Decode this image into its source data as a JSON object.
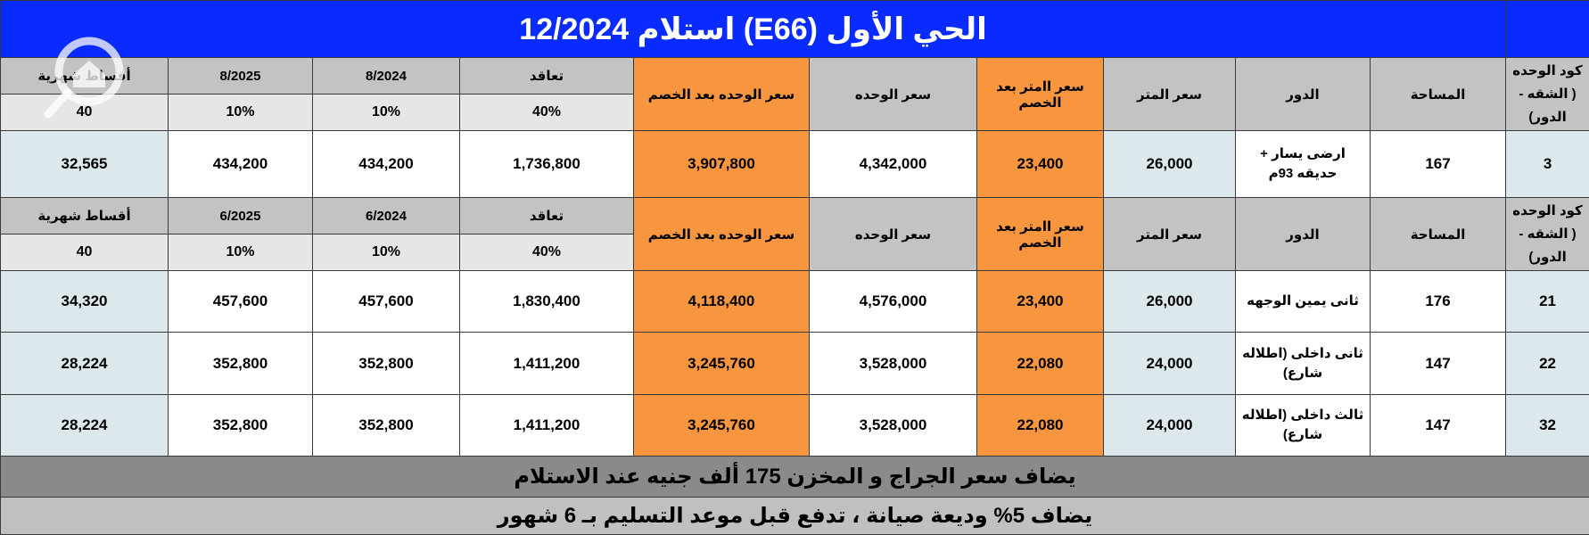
{
  "title": "الحي الأول (E66)  استلام 12/2024",
  "sections": [
    {
      "header_top": {
        "unit_code": "كود الوحده\n( الشقه - الدور)",
        "area": "المساحة",
        "floor": "الدور",
        "meter_price": "سعر المتر",
        "meter_price_discount": "سعر اامتر بعد الخصم",
        "unit_price": "سعر الوحده",
        "unit_price_discount": "سعر الوحده بعد الخصم",
        "contract": "تعاقد",
        "inst1": "8/2024",
        "inst2": "8/2025",
        "monthly": "أقساط شهرية"
      },
      "header_pct": {
        "contract": "40%",
        "inst1": "10%",
        "inst2": "10%",
        "monthly": "40"
      },
      "rows": [
        {
          "code": "3",
          "area": "167",
          "floor": "ارضى يسار + حديقه 93م",
          "meter_price": "26,000",
          "meter_price_discount": "23,400",
          "unit_price": "4,342,000",
          "unit_price_discount": "3,907,800",
          "contract": "1,736,800",
          "inst1": "434,200",
          "inst2": "434,200",
          "monthly": "32,565"
        }
      ]
    },
    {
      "header_top": {
        "unit_code": "كود الوحده\n( الشقه - الدور)",
        "area": "المساحة",
        "floor": "الدور",
        "meter_price": "سعر المتر",
        "meter_price_discount": "سعر اامتر بعد الخصم",
        "unit_price": "سعر الوحده",
        "unit_price_discount": "سعر الوحده بعد الخصم",
        "contract": "تعاقد",
        "inst1": "6/2024",
        "inst2": "6/2025",
        "monthly": "أقساط شهرية"
      },
      "header_pct": {
        "contract": "40%",
        "inst1": "10%",
        "inst2": "10%",
        "monthly": "40"
      },
      "rows": [
        {
          "code": "21",
          "area": "176",
          "floor": "ثانى يمين الوجهه",
          "meter_price": "26,000",
          "meter_price_discount": "23,400",
          "unit_price": "4,576,000",
          "unit_price_discount": "4,118,400",
          "contract": "1,830,400",
          "inst1": "457,600",
          "inst2": "457,600",
          "monthly": "34,320"
        },
        {
          "code": "22",
          "area": "147",
          "floor": "ثانى داخلى (اطلاله شارع)",
          "meter_price": "24,000",
          "meter_price_discount": "22,080",
          "unit_price": "3,528,000",
          "unit_price_discount": "3,245,760",
          "contract": "1,411,200",
          "inst1": "352,800",
          "inst2": "352,800",
          "monthly": "28,224"
        },
        {
          "code": "32",
          "area": "147",
          "floor": "ثالث داخلى (اطلاله شارع)",
          "meter_price": "24,000",
          "meter_price_discount": "22,080",
          "unit_price": "3,528,000",
          "unit_price_discount": "3,245,760",
          "contract": "1,411,200",
          "inst1": "352,800",
          "inst2": "352,800",
          "monthly": "28,224"
        }
      ]
    }
  ],
  "notes": [
    "يضاف سعر الجراج و المخزن 175 ألف جنيه عند الاستلام",
    "يضاف 5% وديعة صيانة ، تدفع قبل موعد التسليم بـ 6 شهور"
  ],
  "colors": {
    "title_bg": "#0a2bff",
    "header_gray": "#c3c3c3",
    "highlight_orange": "#f7963f",
    "data_blue": "#dce8ec",
    "note_dark": "#8a8a8a",
    "note_light": "#c0c0c0"
  },
  "watermark": {
    "icon": "house-search-icon"
  }
}
